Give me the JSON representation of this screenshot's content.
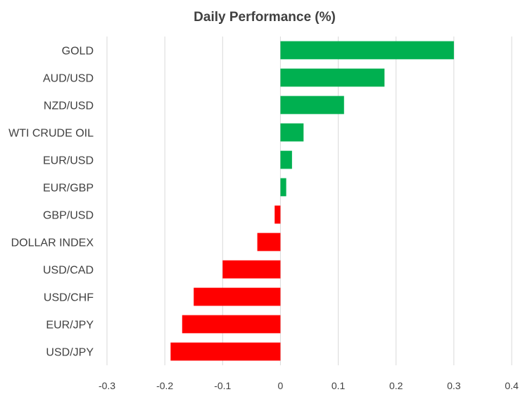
{
  "chart_data": {
    "type": "bar",
    "orientation": "horizontal",
    "title": "Daily Performance (%)",
    "xlabel": "",
    "ylabel": "",
    "categories": [
      "GOLD",
      "AUD/USD",
      "NZD/USD",
      "WTI CRUDE OIL",
      "EUR/USD",
      "EUR/GBP",
      "GBP/USD",
      "DOLLAR INDEX",
      "USD/CAD",
      "USD/CHF",
      "EUR/JPY",
      "USD/JPY"
    ],
    "values": [
      0.3,
      0.18,
      0.11,
      0.04,
      0.02,
      0.01,
      -0.01,
      -0.04,
      -0.1,
      -0.15,
      -0.17,
      -0.19
    ],
    "xlim": [
      -0.3,
      0.4
    ],
    "xticks": [
      -0.3,
      -0.2,
      -0.1,
      0,
      0.1,
      0.2,
      0.3,
      0.4
    ],
    "xtick_labels": [
      "-0.3",
      "-0.2",
      "-0.1",
      "0",
      "0.1",
      "0.2",
      "0.3",
      "0.4"
    ],
    "grid": "vertical",
    "legend": "none",
    "colors": {
      "positive": "#00b050",
      "negative": "#ff0000",
      "grid": "#d9d9d9",
      "text": "#404040"
    }
  }
}
